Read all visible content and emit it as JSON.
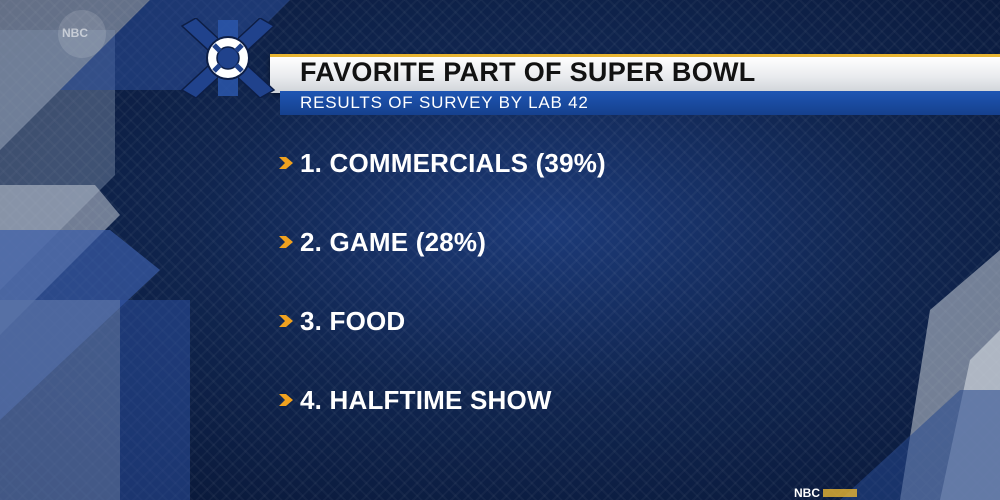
{
  "graphic": {
    "title": "FAVORITE PART OF SUPER BOWL",
    "subtitle": "RESULTS OF SURVEY BY LAB 42",
    "items": [
      {
        "text": "1. COMMERCIALS (39%)"
      },
      {
        "text": "2. GAME (28%)"
      },
      {
        "text": "3. FOOD"
      },
      {
        "text": "4. HALFTIME SHOW"
      }
    ]
  },
  "watermark": {
    "corner_label": "NBC"
  },
  "network_bug": {
    "label": "NBC"
  },
  "colors": {
    "background": "#10254f",
    "title_bar": "#ffffff",
    "accent_gold": "#e8b532",
    "subtitle_bar": "#1f56b4",
    "bullet": "#f0a21f"
  },
  "icons": {
    "logo": "lifebuoy-x-logo",
    "bullet": "chevron-right-icon"
  }
}
